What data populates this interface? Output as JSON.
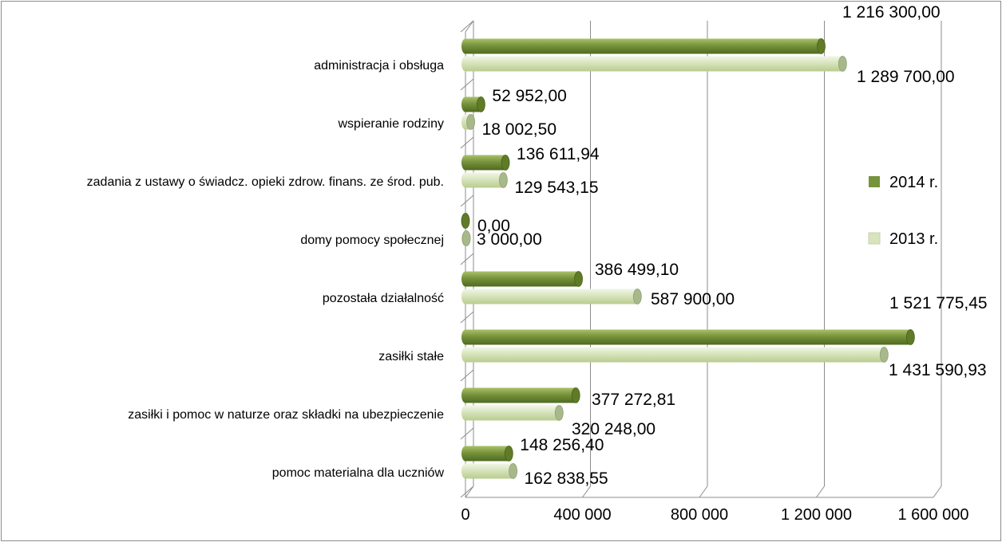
{
  "chart_data": {
    "type": "bar",
    "orientation": "horizontal",
    "style": "3d-cylinder",
    "categories": [
      "administracja i obsługa",
      "wspieranie rodziny",
      "zadania z ustawy o świadcz. opieki zdrow. finans. ze środ. pub.",
      "domy pomocy społecznej",
      "pozostała działalność",
      "zasiłki stałe",
      "zasiłki i pomoc w naturze oraz składki na ubezpieczenie",
      "pomoc materialna dla uczniów"
    ],
    "series": [
      {
        "name": "2014 r.",
        "color": "#77933c",
        "values": [
          1216300.0,
          52952.0,
          136611.94,
          0.0,
          386499.1,
          1521775.45,
          377272.81,
          148256.4
        ],
        "labels": [
          "1 216 300,00",
          "52 952,00",
          "136 611,94",
          "0,00",
          "386 499,10",
          "1 521 775,45",
          "377 272,81",
          "148 256,40"
        ]
      },
      {
        "name": "2013 r.",
        "color": "#d7e4bd",
        "values": [
          1289700.0,
          18002.5,
          129543.15,
          3000.0,
          587900.0,
          1431590.93,
          320248.0,
          162838.55
        ],
        "labels": [
          "1 289 700,00",
          "18 002,50",
          "129 543,15",
          "3 000,00",
          "587 900,00",
          "1 431 590,93",
          "320 248,00",
          "162 838,55"
        ]
      }
    ],
    "xlim": [
      0,
      1600000
    ],
    "xticks": [
      0,
      400000,
      800000,
      1200000,
      1600000
    ],
    "xtick_labels": [
      "0",
      "400 000",
      "800 000",
      "1 200 000",
      "1 600 000"
    ],
    "grid": true,
    "legend": "right"
  }
}
